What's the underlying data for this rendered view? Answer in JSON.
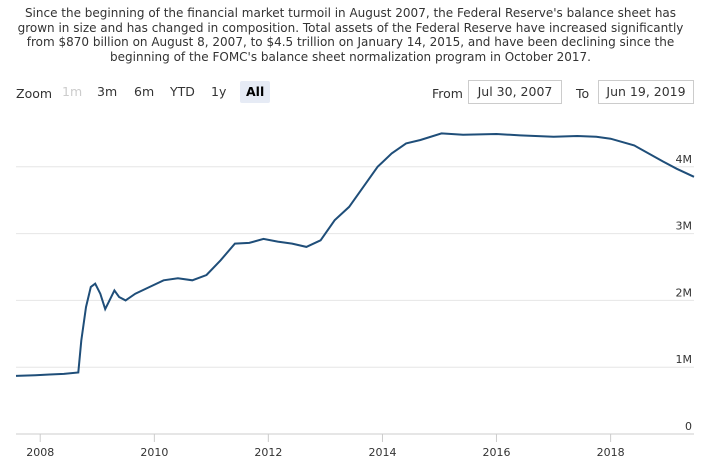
{
  "caption": "Since the beginning of the financial market turmoil in August 2007, the Federal Reserve's balance sheet has grown in size and has changed in composition. Total assets of the Federal Reserve have increased significantly from $870 billion on August 8, 2007, to $4.5 trillion on January 14, 2015, and have been declining since the beginning of the FOMC's balance sheet normalization program in October 2017.",
  "toolbar": {
    "zoom_label": "Zoom",
    "buttons": [
      {
        "label": "1m",
        "state": "disabled"
      },
      {
        "label": "3m",
        "state": "normal"
      },
      {
        "label": "6m",
        "state": "normal"
      },
      {
        "label": "YTD",
        "state": "normal"
      },
      {
        "label": "1y",
        "state": "normal"
      },
      {
        "label": "All",
        "state": "active"
      }
    ],
    "from_label": "From",
    "from_value": "Jul 30, 2007",
    "to_label": "To",
    "to_value": "Jun 19, 2019"
  },
  "colors": {
    "line": "#1f4e79",
    "grid": "#e6e6e6",
    "axis": "#cccccc",
    "active_button": "#e6ebf5"
  },
  "chart_data": {
    "type": "line",
    "title": "",
    "xlabel": "",
    "ylabel": "",
    "x_ticks": [
      "2008",
      "2010",
      "2012",
      "2014",
      "2016",
      "2018"
    ],
    "y_ticks": [
      "0",
      "1M",
      "2M",
      "3M",
      "4M"
    ],
    "x_range": [
      "2007-07-30",
      "2019-06-19"
    ],
    "y_range": [
      0,
      4700000
    ],
    "grid": true,
    "series": [
      {
        "name": "",
        "points": [
          [
            "2007-07-30",
            870000
          ],
          [
            "2007-12-01",
            880000
          ],
          [
            "2008-03-01",
            890000
          ],
          [
            "2008-06-01",
            900000
          ],
          [
            "2008-09-01",
            920000
          ],
          [
            "2008-09-20",
            1400000
          ],
          [
            "2008-10-20",
            1900000
          ],
          [
            "2008-11-20",
            2200000
          ],
          [
            "2008-12-18",
            2250000
          ],
          [
            "2009-01-20",
            2100000
          ],
          [
            "2009-02-20",
            1870000
          ],
          [
            "2009-03-20",
            2000000
          ],
          [
            "2009-04-20",
            2150000
          ],
          [
            "2009-05-20",
            2050000
          ],
          [
            "2009-07-01",
            2000000
          ],
          [
            "2009-09-01",
            2100000
          ],
          [
            "2009-12-01",
            2200000
          ],
          [
            "2010-03-01",
            2300000
          ],
          [
            "2010-06-01",
            2330000
          ],
          [
            "2010-09-01",
            2300000
          ],
          [
            "2010-12-01",
            2380000
          ],
          [
            "2011-03-01",
            2600000
          ],
          [
            "2011-06-01",
            2850000
          ],
          [
            "2011-09-01",
            2860000
          ],
          [
            "2011-12-01",
            2920000
          ],
          [
            "2012-03-01",
            2880000
          ],
          [
            "2012-06-01",
            2850000
          ],
          [
            "2012-09-01",
            2800000
          ],
          [
            "2012-12-01",
            2900000
          ],
          [
            "2013-03-01",
            3200000
          ],
          [
            "2013-06-01",
            3400000
          ],
          [
            "2013-09-01",
            3700000
          ],
          [
            "2013-12-01",
            4000000
          ],
          [
            "2014-03-01",
            4200000
          ],
          [
            "2014-06-01",
            4350000
          ],
          [
            "2014-09-01",
            4400000
          ],
          [
            "2015-01-14",
            4500000
          ],
          [
            "2015-06-01",
            4480000
          ],
          [
            "2016-01-01",
            4490000
          ],
          [
            "2016-06-01",
            4470000
          ],
          [
            "2017-01-01",
            4450000
          ],
          [
            "2017-06-01",
            4460000
          ],
          [
            "2017-10-01",
            4450000
          ],
          [
            "2018-01-01",
            4420000
          ],
          [
            "2018-06-01",
            4320000
          ],
          [
            "2018-12-01",
            4080000
          ],
          [
            "2019-03-01",
            3970000
          ],
          [
            "2019-06-19",
            3850000
          ]
        ]
      }
    ]
  }
}
